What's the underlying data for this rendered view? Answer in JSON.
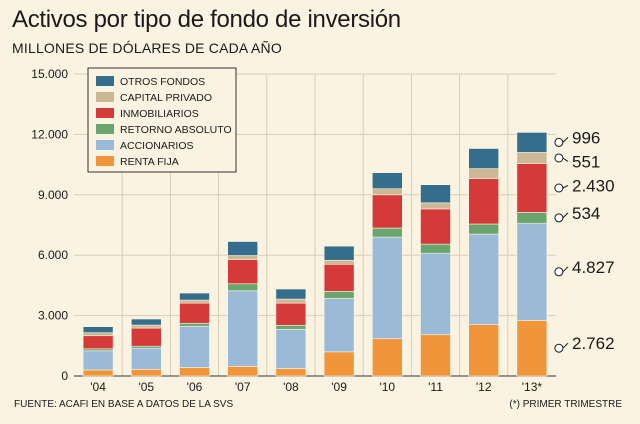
{
  "header": {
    "title": "Activos por tipo de fondo de inversión",
    "subtitle": "MILLONES DE DÓLARES DE CADA AÑO"
  },
  "footer": {
    "source": "FUENTE: ACAFI EN BASE A DATOS DE LA SVS",
    "note": "(*) PRIMER TRIMESTRE"
  },
  "chart_data": {
    "type": "bar",
    "stacked": true,
    "title": "Activos por tipo de fondo de inversión",
    "subtitle": "MILLONES DE DÓLARES DE CADA AÑO",
    "xlabel": "",
    "ylabel": "",
    "ylim": [
      0,
      15000
    ],
    "yticks": [
      0,
      3000,
      6000,
      9000,
      12000,
      15000
    ],
    "ytick_labels": [
      "0",
      "3.000",
      "6.000",
      "9.000",
      "12.000",
      "15.000"
    ],
    "grid": true,
    "legend_position": "top-left",
    "categories": [
      "'04",
      "'05",
      "'06",
      "'07",
      "'08",
      "'09",
      "'10",
      "'11",
      "'12",
      "'13*"
    ],
    "series": [
      {
        "name": "RENTA FIJA",
        "color": "#f0953a",
        "values": [
          300,
          330,
          420,
          480,
          370,
          1200,
          1850,
          2050,
          2550,
          2762
        ]
      },
      {
        "name": "ACCIONARIOS",
        "color": "#9bbad8",
        "values": [
          950,
          1050,
          2050,
          3750,
          1950,
          2650,
          5050,
          4050,
          4500,
          4827
        ]
      },
      {
        "name": "RETORNO ABSOLUTO",
        "color": "#6aa56e",
        "values": [
          100,
          100,
          150,
          350,
          200,
          350,
          450,
          450,
          500,
          534
        ]
      },
      {
        "name": "INMOBILIARIOS",
        "color": "#d43a3a",
        "values": [
          650,
          900,
          1000,
          1200,
          1100,
          1350,
          1650,
          1750,
          2250,
          2430
        ]
      },
      {
        "name": "CAPITAL PRIVADO",
        "color": "#cdb896",
        "values": [
          150,
          150,
          150,
          200,
          200,
          200,
          300,
          300,
          500,
          551
        ]
      },
      {
        "name": "OTROS FONDOS",
        "color": "#346e8c",
        "values": [
          300,
          300,
          350,
          700,
          500,
          700,
          800,
          900,
          1000,
          996
        ]
      }
    ],
    "legend_order": [
      "OTROS FONDOS",
      "CAPITAL PRIVADO",
      "INMOBILIARIOS",
      "RETORNO ABSOLUTO",
      "ACCIONARIOS",
      "RENTA FIJA"
    ],
    "annotations": [
      {
        "series": "OTROS FONDOS",
        "text": "996"
      },
      {
        "series": "CAPITAL PRIVADO",
        "text": "551"
      },
      {
        "series": "INMOBILIARIOS",
        "text": "2.430"
      },
      {
        "series": "RETORNO ABSOLUTO",
        "text": "534"
      },
      {
        "series": "ACCIONARIOS",
        "text": "4.827"
      },
      {
        "series": "RENTA FIJA",
        "text": "2.762"
      }
    ]
  }
}
